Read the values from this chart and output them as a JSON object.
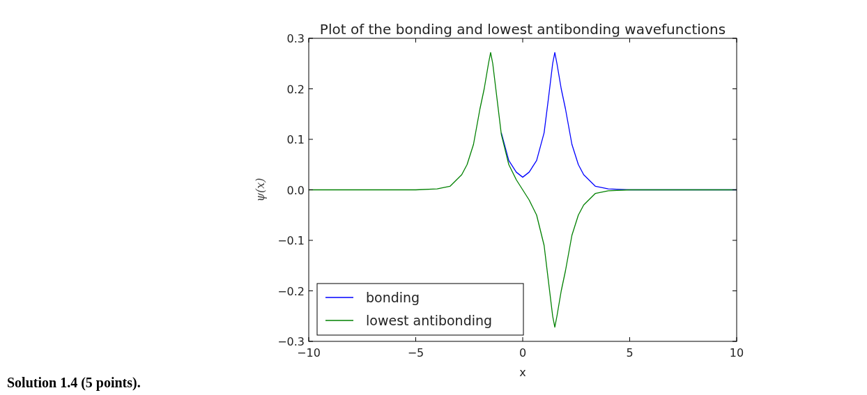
{
  "chart_data": {
    "type": "line",
    "title": "Plot of the bonding and lowest antibonding wavefunctions",
    "xlabel": "x",
    "ylabel": "ψ(x)",
    "x": [
      -10,
      -5,
      -4,
      -3.4,
      -2.85,
      -2.6,
      -2.3,
      -2,
      -1.8,
      -1.6,
      -1.5,
      -1.4,
      -1.2,
      -1,
      -0.65,
      -0.3,
      0,
      0.3,
      0.65,
      1,
      1.2,
      1.4,
      1.5,
      1.6,
      1.8,
      2,
      2.3,
      2.6,
      2.85,
      3.4,
      4,
      5,
      10
    ],
    "series": [
      {
        "name": "bonding",
        "color": "#0000ff",
        "values": [
          null,
          null,
          null,
          null,
          null,
          null,
          null,
          null,
          null,
          null,
          null,
          null,
          null,
          0.113,
          0.058,
          0.035,
          0.025,
          0.035,
          0.058,
          0.113,
          0.18,
          0.25,
          0.272,
          0.25,
          0.2,
          0.16,
          0.09,
          0.05,
          0.03,
          0.007,
          0.002,
          0,
          0
        ]
      },
      {
        "name": "lowest antibonding",
        "color": "#008000",
        "values": [
          0,
          0,
          0.002,
          0.007,
          0.03,
          0.05,
          0.09,
          0.16,
          0.2,
          0.25,
          0.272,
          0.25,
          0.18,
          0.11,
          0.05,
          0.02,
          0,
          -0.02,
          -0.05,
          -0.11,
          -0.18,
          -0.25,
          -0.272,
          -0.25,
          -0.2,
          -0.16,
          -0.09,
          -0.05,
          -0.03,
          -0.007,
          -0.002,
          0,
          0
        ]
      }
    ],
    "xlim": [
      -10,
      10
    ],
    "xticks": [
      {
        "value": -10,
        "label": "−10"
      },
      {
        "value": -5,
        "label": "−5"
      },
      0,
      5,
      10
    ],
    "ylim": [
      -0.3,
      0.3
    ],
    "yticks": [
      {
        "value": -0.3,
        "label": "−0.3"
      },
      {
        "value": -0.2,
        "label": "−0.2"
      },
      {
        "value": -0.1,
        "label": "−0.1"
      },
      {
        "value": 0,
        "label": "0.0"
      },
      0.1,
      0.2,
      0.3
    ],
    "legend": "bottom left",
    "grid": false,
    "line_style": "solid",
    "marker": "none",
    "annotations": [
      "Solution 1.4 (5 points)."
    ]
  }
}
